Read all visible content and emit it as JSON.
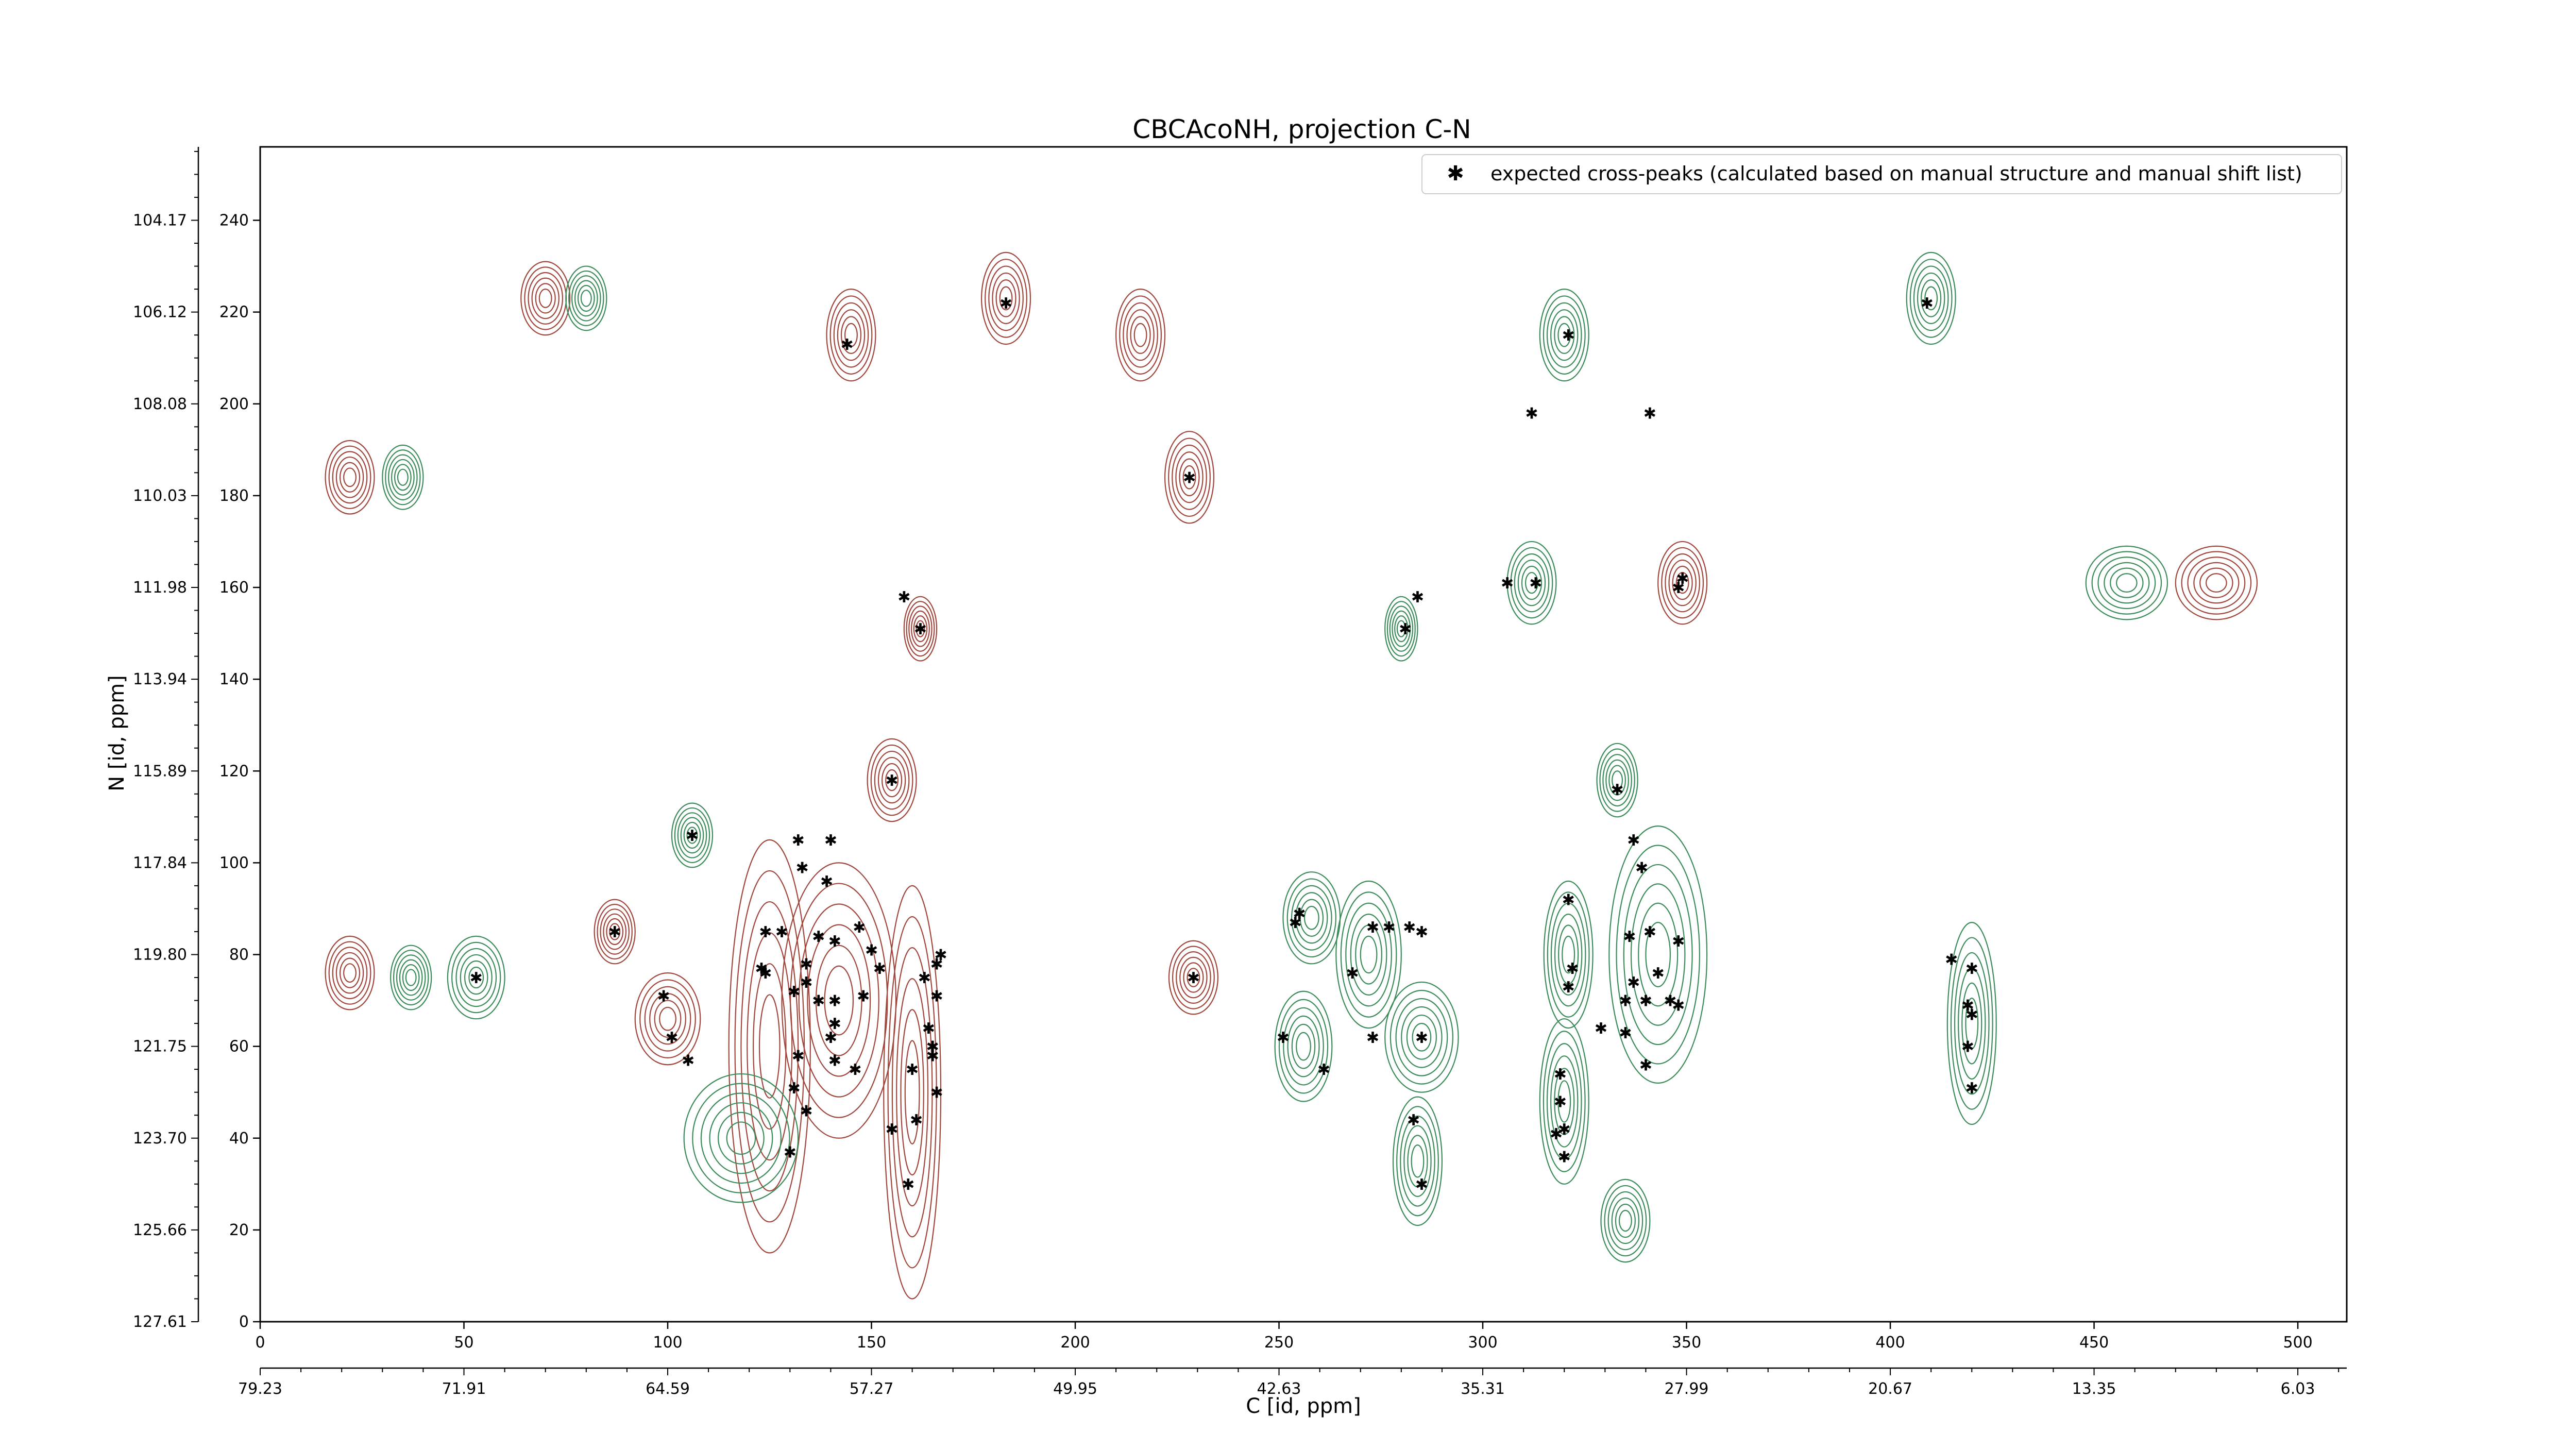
{
  "chart_data": {
    "type": "contour",
    "title": "CBCAcoNH, projection C-N",
    "xlabel": "C [id, ppm]",
    "ylabel": "N [id, ppm]",
    "xlim": [
      0,
      512
    ],
    "ylim": [
      0,
      256
    ],
    "x_ticks": [
      0,
      50,
      100,
      150,
      200,
      250,
      300,
      350,
      400,
      450,
      500
    ],
    "y_ticks": [
      0,
      20,
      40,
      60,
      80,
      100,
      120,
      140,
      160,
      180,
      200,
      220,
      240
    ],
    "x_ppm_ticks": [
      {
        "pos": 0,
        "label": "79.23"
      },
      {
        "pos": 50,
        "label": "71.91"
      },
      {
        "pos": 100,
        "label": "64.59"
      },
      {
        "pos": 150,
        "label": "57.27"
      },
      {
        "pos": 200,
        "label": "49.95"
      },
      {
        "pos": 250,
        "label": "42.63"
      },
      {
        "pos": 300,
        "label": "35.31"
      },
      {
        "pos": 350,
        "label": "27.99"
      },
      {
        "pos": 400,
        "label": "20.67"
      },
      {
        "pos": 450,
        "label": "13.35"
      },
      {
        "pos": 500,
        "label": "6.03"
      }
    ],
    "y_ppm_ticks": [
      {
        "pos": 0,
        "label": "127.61"
      },
      {
        "pos": 20,
        "label": "125.66"
      },
      {
        "pos": 40,
        "label": "123.70"
      },
      {
        "pos": 60,
        "label": "121.75"
      },
      {
        "pos": 80,
        "label": "119.80"
      },
      {
        "pos": 100,
        "label": "117.84"
      },
      {
        "pos": 120,
        "label": "115.89"
      },
      {
        "pos": 140,
        "label": "113.94"
      },
      {
        "pos": 160,
        "label": "111.98"
      },
      {
        "pos": 180,
        "label": "110.03"
      },
      {
        "pos": 200,
        "label": "108.08"
      },
      {
        "pos": 220,
        "label": "106.12"
      },
      {
        "pos": 240,
        "label": "104.17"
      }
    ],
    "legend": {
      "label": "expected cross-peaks (calculated based on manual structure and manual shift list)",
      "location": "top-right",
      "marker_color": "#0000ff"
    },
    "colors": {
      "positive_contours": "#a0463c",
      "negative_contours": "#3c8c5a",
      "peak_markers": "#0000ff"
    },
    "contour_peaks": [
      {
        "x": 53,
        "y": 75,
        "w": 7,
        "h": 9,
        "sign": -1
      },
      {
        "x": 37,
        "y": 75,
        "w": 5,
        "h": 7,
        "sign": -1
      },
      {
        "x": 22,
        "y": 76,
        "w": 6,
        "h": 8,
        "sign": 1
      },
      {
        "x": 87,
        "y": 85,
        "w": 5,
        "h": 7,
        "sign": 1
      },
      {
        "x": 106,
        "y": 106,
        "w": 5,
        "h": 7,
        "sign": -1
      },
      {
        "x": 100,
        "y": 66,
        "w": 8,
        "h": 10,
        "sign": 1
      },
      {
        "x": 125,
        "y": 60,
        "w": 10,
        "h": 45,
        "sign": 1
      },
      {
        "x": 142,
        "y": 70,
        "w": 14,
        "h": 30,
        "sign": 1
      },
      {
        "x": 160,
        "y": 50,
        "w": 7,
        "h": 45,
        "sign": 1
      },
      {
        "x": 155,
        "y": 118,
        "w": 6,
        "h": 9,
        "sign": 1
      },
      {
        "x": 118,
        "y": 40,
        "w": 14,
        "h": 14,
        "sign": -1
      },
      {
        "x": 229,
        "y": 75,
        "w": 6,
        "h": 8,
        "sign": 1
      },
      {
        "x": 258,
        "y": 88,
        "w": 7,
        "h": 10,
        "sign": -1
      },
      {
        "x": 256,
        "y": 60,
        "w": 7,
        "h": 12,
        "sign": -1
      },
      {
        "x": 272,
        "y": 80,
        "w": 8,
        "h": 16,
        "sign": -1
      },
      {
        "x": 285,
        "y": 62,
        "w": 9,
        "h": 12,
        "sign": -1
      },
      {
        "x": 284,
        "y": 35,
        "w": 6,
        "h": 14,
        "sign": -1
      },
      {
        "x": 320,
        "y": 48,
        "w": 6,
        "h": 18,
        "sign": -1
      },
      {
        "x": 321,
        "y": 80,
        "w": 6,
        "h": 16,
        "sign": -1
      },
      {
        "x": 333,
        "y": 118,
        "w": 5,
        "h": 8,
        "sign": -1
      },
      {
        "x": 343,
        "y": 80,
        "w": 12,
        "h": 28,
        "sign": -1
      },
      {
        "x": 335,
        "y": 22,
        "w": 6,
        "h": 9,
        "sign": -1
      },
      {
        "x": 420,
        "y": 65,
        "w": 6,
        "h": 22,
        "sign": -1
      },
      {
        "x": 216,
        "y": 215,
        "w": 6,
        "h": 10,
        "sign": 1
      },
      {
        "x": 145,
        "y": 215,
        "w": 6,
        "h": 10,
        "sign": 1
      },
      {
        "x": 183,
        "y": 223,
        "w": 6,
        "h": 10,
        "sign": 1
      },
      {
        "x": 320,
        "y": 215,
        "w": 6,
        "h": 10,
        "sign": -1
      },
      {
        "x": 410,
        "y": 223,
        "w": 6,
        "h": 10,
        "sign": -1
      },
      {
        "x": 228,
        "y": 184,
        "w": 6,
        "h": 10,
        "sign": 1
      },
      {
        "x": 312,
        "y": 161,
        "w": 6,
        "h": 9,
        "sign": -1
      },
      {
        "x": 349,
        "y": 161,
        "w": 6,
        "h": 9,
        "sign": 1
      },
      {
        "x": 458,
        "y": 161,
        "w": 10,
        "h": 8,
        "sign": -1
      },
      {
        "x": 480,
        "y": 161,
        "w": 10,
        "h": 8,
        "sign": 1
      },
      {
        "x": 22,
        "y": 184,
        "w": 6,
        "h": 8,
        "sign": 1
      },
      {
        "x": 35,
        "y": 184,
        "w": 5,
        "h": 7,
        "sign": -1
      },
      {
        "x": 70,
        "y": 223,
        "w": 6,
        "h": 8,
        "sign": 1
      },
      {
        "x": 80,
        "y": 223,
        "w": 5,
        "h": 7,
        "sign": -1
      },
      {
        "x": 162,
        "y": 151,
        "w": 4,
        "h": 7,
        "sign": 1
      },
      {
        "x": 280,
        "y": 151,
        "w": 4,
        "h": 7,
        "sign": -1
      }
    ],
    "points": [
      {
        "x": 53,
        "y": 75
      },
      {
        "x": 87,
        "y": 85
      },
      {
        "x": 106,
        "y": 106
      },
      {
        "x": 99,
        "y": 71
      },
      {
        "x": 101,
        "y": 62
      },
      {
        "x": 105,
        "y": 57
      },
      {
        "x": 124,
        "y": 85
      },
      {
        "x": 128,
        "y": 85
      },
      {
        "x": 123,
        "y": 77
      },
      {
        "x": 124,
        "y": 76
      },
      {
        "x": 132,
        "y": 105
      },
      {
        "x": 133,
        "y": 99
      },
      {
        "x": 139,
        "y": 96
      },
      {
        "x": 140,
        "y": 105
      },
      {
        "x": 137,
        "y": 84
      },
      {
        "x": 141,
        "y": 83
      },
      {
        "x": 147,
        "y": 86
      },
      {
        "x": 134,
        "y": 78
      },
      {
        "x": 134,
        "y": 74
      },
      {
        "x": 131,
        "y": 72
      },
      {
        "x": 137,
        "y": 70
      },
      {
        "x": 141,
        "y": 70
      },
      {
        "x": 148,
        "y": 71
      },
      {
        "x": 150,
        "y": 81
      },
      {
        "x": 152,
        "y": 77
      },
      {
        "x": 141,
        "y": 65
      },
      {
        "x": 140,
        "y": 62
      },
      {
        "x": 141,
        "y": 57
      },
      {
        "x": 146,
        "y": 55
      },
      {
        "x": 132,
        "y": 58
      },
      {
        "x": 131,
        "y": 51
      },
      {
        "x": 134,
        "y": 46
      },
      {
        "x": 130,
        "y": 37
      },
      {
        "x": 155,
        "y": 118
      },
      {
        "x": 160,
        "y": 55
      },
      {
        "x": 164,
        "y": 64
      },
      {
        "x": 165,
        "y": 60
      },
      {
        "x": 165,
        "y": 58
      },
      {
        "x": 166,
        "y": 50
      },
      {
        "x": 166,
        "y": 71
      },
      {
        "x": 166,
        "y": 78
      },
      {
        "x": 167,
        "y": 80
      },
      {
        "x": 163,
        "y": 75
      },
      {
        "x": 155,
        "y": 42
      },
      {
        "x": 161,
        "y": 44
      },
      {
        "x": 159,
        "y": 30
      },
      {
        "x": 229,
        "y": 75
      },
      {
        "x": 254,
        "y": 87
      },
      {
        "x": 255,
        "y": 89
      },
      {
        "x": 251,
        "y": 62
      },
      {
        "x": 261,
        "y": 55
      },
      {
        "x": 268,
        "y": 76
      },
      {
        "x": 273,
        "y": 86
      },
      {
        "x": 277,
        "y": 86
      },
      {
        "x": 282,
        "y": 86
      },
      {
        "x": 285,
        "y": 85
      },
      {
        "x": 273,
        "y": 62
      },
      {
        "x": 285,
        "y": 62
      },
      {
        "x": 283,
        "y": 44
      },
      {
        "x": 285,
        "y": 30
      },
      {
        "x": 319,
        "y": 54
      },
      {
        "x": 319,
        "y": 48
      },
      {
        "x": 320,
        "y": 42
      },
      {
        "x": 320,
        "y": 36
      },
      {
        "x": 321,
        "y": 92
      },
      {
        "x": 322,
        "y": 77
      },
      {
        "x": 321,
        "y": 73
      },
      {
        "x": 318,
        "y": 41
      },
      {
        "x": 329,
        "y": 64
      },
      {
        "x": 335,
        "y": 63
      },
      {
        "x": 340,
        "y": 70
      },
      {
        "x": 335,
        "y": 70
      },
      {
        "x": 343,
        "y": 76
      },
      {
        "x": 337,
        "y": 74
      },
      {
        "x": 346,
        "y": 70
      },
      {
        "x": 348,
        "y": 83
      },
      {
        "x": 336,
        "y": 84
      },
      {
        "x": 341,
        "y": 85
      },
      {
        "x": 340,
        "y": 56
      },
      {
        "x": 348,
        "y": 69
      },
      {
        "x": 333,
        "y": 116
      },
      {
        "x": 337,
        "y": 105
      },
      {
        "x": 339,
        "y": 99
      },
      {
        "x": 321,
        "y": 215
      },
      {
        "x": 312,
        "y": 198
      },
      {
        "x": 341,
        "y": 198
      },
      {
        "x": 313,
        "y": 161
      },
      {
        "x": 306,
        "y": 161
      },
      {
        "x": 349,
        "y": 162
      },
      {
        "x": 348,
        "y": 160
      },
      {
        "x": 281,
        "y": 151
      },
      {
        "x": 284,
        "y": 158
      },
      {
        "x": 158,
        "y": 158
      },
      {
        "x": 162,
        "y": 151
      },
      {
        "x": 144,
        "y": 213
      },
      {
        "x": 183,
        "y": 222
      },
      {
        "x": 228,
        "y": 184
      },
      {
        "x": 409,
        "y": 222
      },
      {
        "x": 415,
        "y": 79
      },
      {
        "x": 420,
        "y": 77
      },
      {
        "x": 419,
        "y": 69
      },
      {
        "x": 420,
        "y": 67
      },
      {
        "x": 419,
        "y": 60
      },
      {
        "x": 420,
        "y": 51
      }
    ]
  }
}
